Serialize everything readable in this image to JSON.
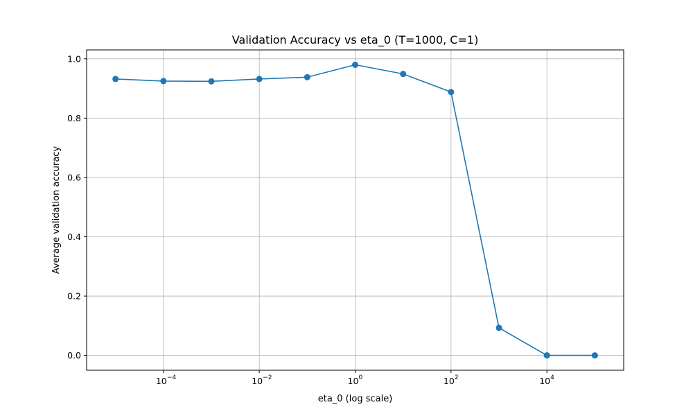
{
  "chart_data": {
    "type": "line",
    "title": "Validation Accuracy vs eta_0 (T=1000, C=1)",
    "xlabel": "eta_0 (log scale)",
    "ylabel": "Average validation accuracy",
    "x_scale": "log",
    "xlim": [
      2.5e-06,
      400000
    ],
    "ylim": [
      -0.05,
      1.03
    ],
    "grid": true,
    "x_ticks": [
      0.0001,
      0.01,
      1,
      100,
      10000
    ],
    "x_tick_labels": [
      {
        "base": "10",
        "exp": "−4"
      },
      {
        "base": "10",
        "exp": "−2"
      },
      {
        "base": "10",
        "exp": "0"
      },
      {
        "base": "10",
        "exp": "2"
      },
      {
        "base": "10",
        "exp": "4"
      }
    ],
    "y_ticks": [
      0.0,
      0.2,
      0.4,
      0.6,
      0.8,
      1.0
    ],
    "y_tick_labels": [
      "0.0",
      "0.2",
      "0.4",
      "0.6",
      "0.8",
      "1.0"
    ],
    "series": [
      {
        "color": "#1f77b4",
        "marker": "circle",
        "x": [
          1e-05,
          0.0001,
          0.001,
          0.01,
          0.1,
          1,
          10,
          100,
          1000,
          10000,
          100000
        ],
        "y": [
          0.932,
          0.925,
          0.924,
          0.932,
          0.938,
          0.98,
          0.949,
          0.888,
          0.093,
          0.0,
          0.0
        ]
      }
    ]
  }
}
